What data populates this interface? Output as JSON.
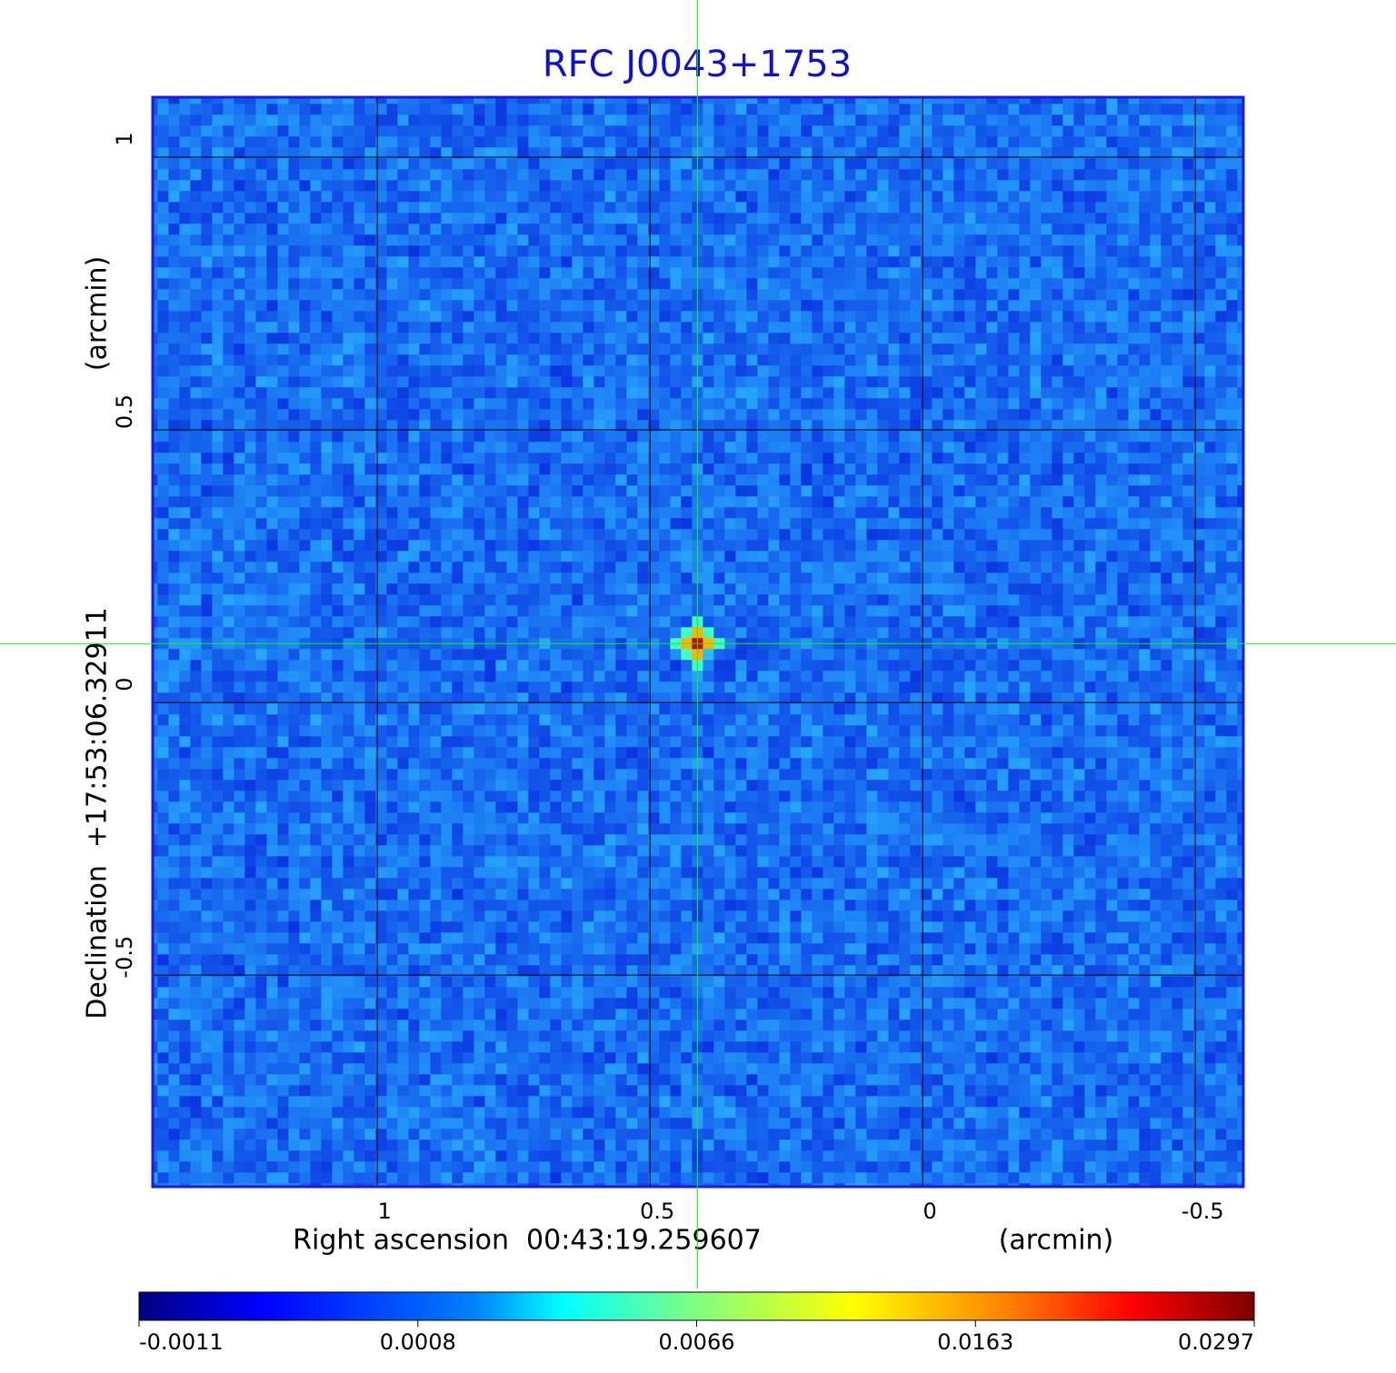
{
  "chart_data": {
    "type": "image",
    "title": "RFC J0043+1753",
    "x_label": "Right ascension  00:43:19.259607",
    "x_unit": "(arcmin)",
    "y_label": "Declination  +17:53:06.32911",
    "y_unit": "(arcmin)",
    "xlim": [
      1.412,
      -0.588
    ],
    "ylim": [
      -0.888,
      1.11
    ],
    "xticks": [
      1.0,
      0.5,
      0.0,
      -0.5
    ],
    "yticks": [
      1.0,
      0.5,
      0.0,
      -0.5
    ],
    "grid": true,
    "marker": {
      "x": 0.413,
      "y": 0.108,
      "color": "#00ff00"
    },
    "colorbar": {
      "colormap": "jet",
      "ticks": [
        -0.0011,
        0.0008,
        0.0066,
        0.0163,
        0.0297
      ]
    }
  }
}
